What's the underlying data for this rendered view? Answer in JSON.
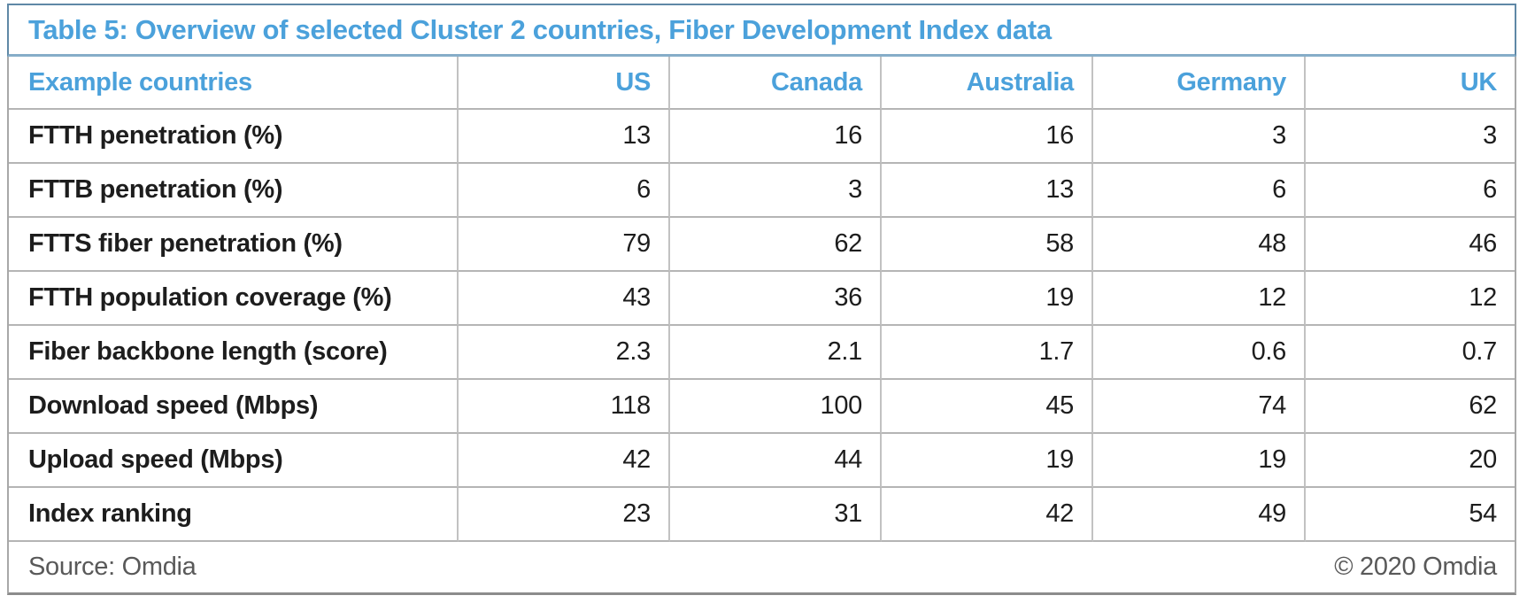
{
  "chart_data": {
    "type": "table",
    "title": "Table 5: Overview of selected Cluster 2 countries, Fiber Development Index data",
    "header": {
      "label": "Example countries",
      "countries": [
        "US",
        "Canada",
        "Australia",
        "Germany",
        "UK"
      ]
    },
    "rows": [
      {
        "label": "FTTH penetration (%)",
        "values": [
          13,
          16,
          16,
          3,
          3
        ]
      },
      {
        "label": "FTTB penetration (%)",
        "values": [
          6,
          3,
          13,
          6,
          6
        ]
      },
      {
        "label": "FTTS fiber penetration (%)",
        "values": [
          79,
          62,
          58,
          48,
          46
        ]
      },
      {
        "label": "FTTH population coverage (%)",
        "values": [
          43,
          36,
          19,
          12,
          12
        ]
      },
      {
        "label": "Fiber backbone length (score)",
        "values": [
          2.3,
          2.1,
          1.7,
          0.6,
          0.7
        ]
      },
      {
        "label": "Download speed (Mbps)",
        "values": [
          118,
          100,
          45,
          74,
          62
        ]
      },
      {
        "label": "Upload speed (Mbps)",
        "values": [
          42,
          44,
          19,
          19,
          20
        ]
      },
      {
        "label": "Index ranking",
        "values": [
          23,
          31,
          42,
          49,
          54
        ]
      }
    ],
    "footer": {
      "source": "Source: Omdia",
      "copyright": "© 2020 Omdia"
    },
    "layout_hints": {
      "grid": "on",
      "value_alignment": "right",
      "label_alignment": "left"
    }
  },
  "colors": {
    "accent_blue": "#4BA1DB",
    "title_border": "#5F88A6",
    "title_underline": "#86ADC8",
    "grid_border": "#B5B5B5",
    "outer_border": "#A8A8A8",
    "footer_bottom_border": "#8C8C8C",
    "text_dark": "#1D1D1D",
    "text_gray": "#595959",
    "background": "#FFFFFF"
  }
}
